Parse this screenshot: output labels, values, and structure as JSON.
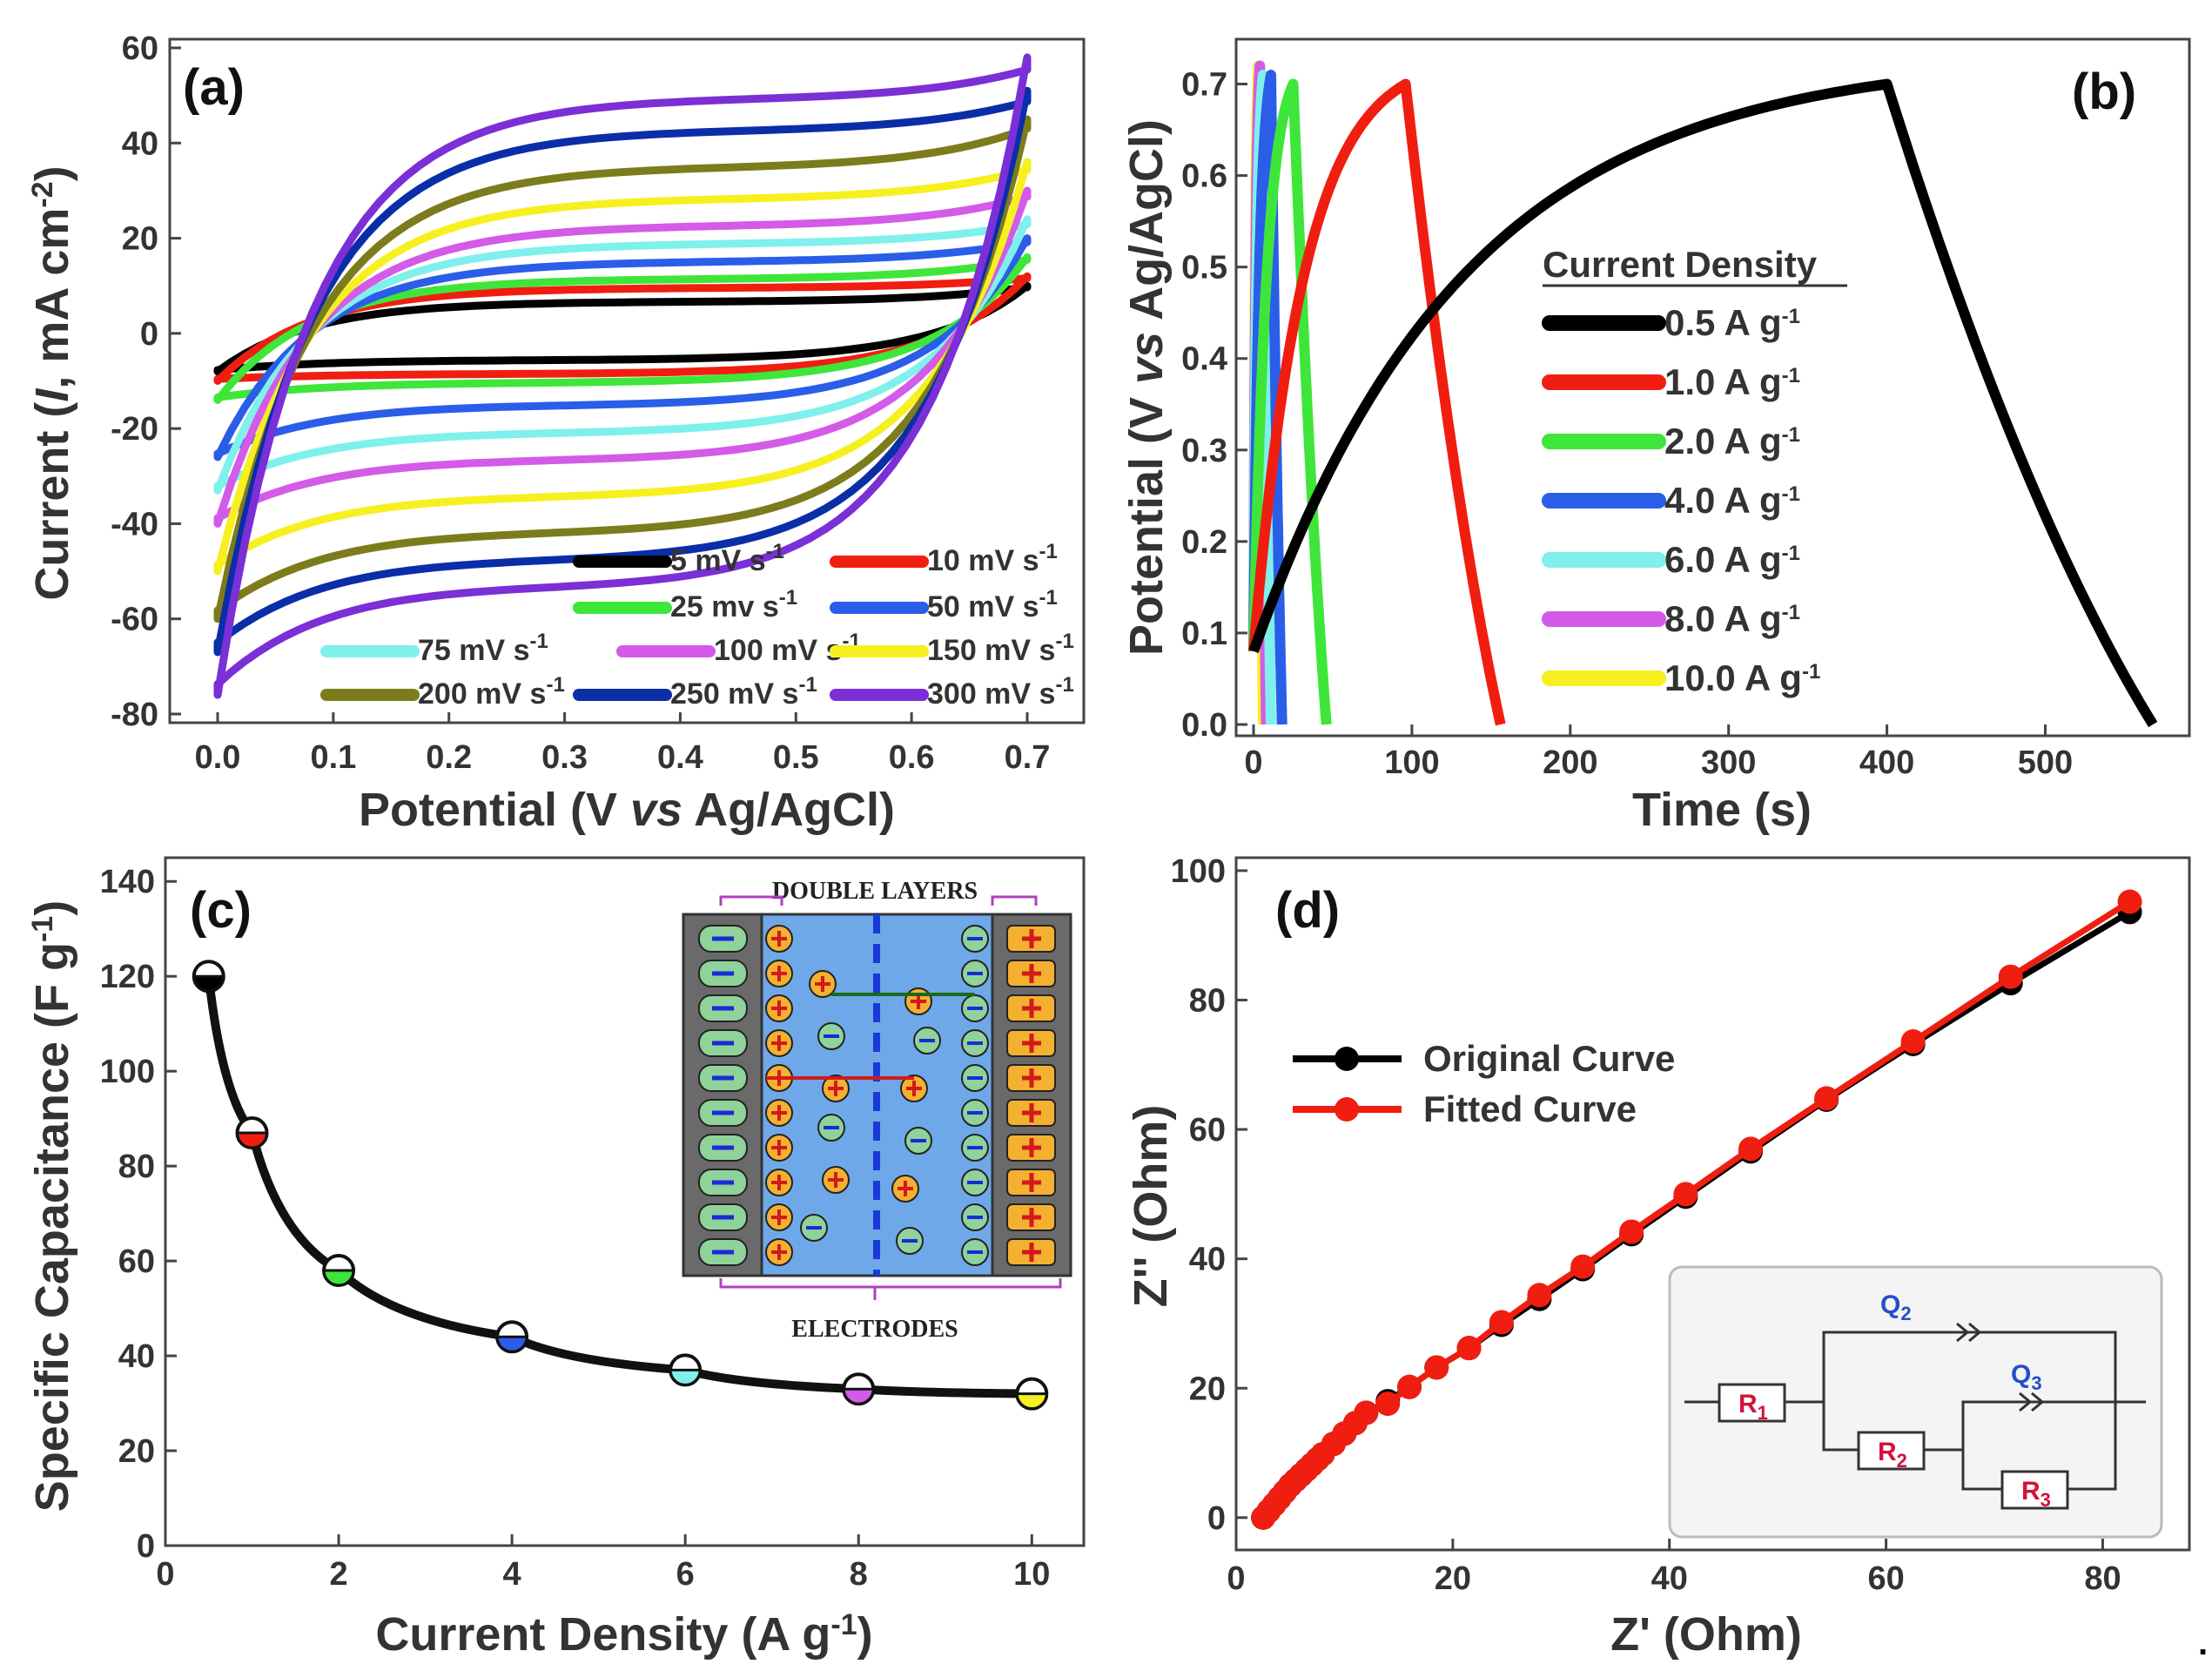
{
  "chart_data": [
    {
      "panel": "(a)",
      "type": "line",
      "xlabel": "Potential (V vs Ag/AgCl)",
      "ylabel": "Current (I, mA cm-2)",
      "xlim": [
        0.0,
        0.7
      ],
      "ylim": [
        -80,
        60
      ],
      "xticks": [
        "0.0",
        "0.1",
        "0.2",
        "0.3",
        "0.4",
        "0.5",
        "0.6",
        "0.7"
      ],
      "yticks": [
        "-80",
        "-60",
        "-40",
        "-20",
        "0",
        "20",
        "40",
        "60"
      ],
      "legend_position": "bottom-right",
      "series": [
        {
          "name": "5 mV s-1",
          "color": "#000000",
          "upper": 7,
          "lower": -6,
          "end": 10,
          "start": -8
        },
        {
          "name": "10 mV s-1",
          "color": "#f01e10",
          "upper": 10,
          "lower": -9,
          "end": 12,
          "start": -10
        },
        {
          "name": "25 mv s-1",
          "color": "#3ee63a",
          "upper": 12,
          "lower": -11,
          "end": 16,
          "start": -14
        },
        {
          "name": "50 mV s-1",
          "color": "#2a5ee8",
          "upper": 16,
          "lower": -16,
          "end": 20,
          "start": -26
        },
        {
          "name": "75 mV s-1",
          "color": "#7ff0ec",
          "upper": 20,
          "lower": -22,
          "end": 24,
          "start": -33
        },
        {
          "name": "100 mV s-1",
          "color": "#d45ae8",
          "upper": 24,
          "lower": -28,
          "end": 30,
          "start": -40
        },
        {
          "name": "150 mV s-1",
          "color": "#f6f020",
          "upper": 30,
          "lower": -36,
          "end": 36,
          "start": -50
        },
        {
          "name": "200 mV s-1",
          "color": "#7c7c1c",
          "upper": 37,
          "lower": -44,
          "end": 45,
          "start": -60
        },
        {
          "name": "250 mV s-1",
          "color": "#0a2ea8",
          "upper": 45,
          "lower": -50,
          "end": 51,
          "start": -67
        },
        {
          "name": "300 mV s-1",
          "color": "#7b2fd6",
          "upper": 52,
          "lower": -56,
          "end": 58,
          "start": -76
        }
      ],
      "legend_labels": [
        "5 mV s",
        "10 mV s",
        "25 mv s",
        "50 mV s",
        "75 mV s",
        "100 mV s",
        "150 mV s",
        "200 mV s",
        "250 mV s",
        "300 mV s"
      ],
      "legend_sup": "-1"
    },
    {
      "panel": "(b)",
      "type": "line",
      "xlabel": "Time (s)",
      "ylabel": "Potential (V vs Ag/AgCl)",
      "xlim": [
        0,
        580
      ],
      "ylim": [
        0.0,
        0.73
      ],
      "xticks": [
        "0",
        "100",
        "200",
        "300",
        "400",
        "500"
      ],
      "yticks": [
        "0.0",
        "0.1",
        "0.2",
        "0.3",
        "0.4",
        "0.5",
        "0.6",
        "0.7"
      ],
      "legend_title": "Current Density",
      "legend_position": "center-right",
      "series": [
        {
          "name": "0.5 A g-1",
          "color": "#000000",
          "charge_end": 400,
          "discharge_end": 568,
          "peak": 0.7
        },
        {
          "name": "1.0 A g-1",
          "color": "#f01e10",
          "charge_end": 96,
          "discharge_end": 156,
          "peak": 0.7
        },
        {
          "name": "2.0 A g-1",
          "color": "#3ee63a",
          "charge_end": 25,
          "discharge_end": 46,
          "peak": 0.7
        },
        {
          "name": "4.0 A g-1",
          "color": "#2a5ee8",
          "charge_end": 11,
          "discharge_end": 18,
          "peak": 0.71
        },
        {
          "name": "6.0 A g-1",
          "color": "#7ff0ec",
          "charge_end": 6,
          "discharge_end": 11,
          "peak": 0.71
        },
        {
          "name": "8.0 A g-1",
          "color": "#d45ae8",
          "charge_end": 4,
          "discharge_end": 8,
          "peak": 0.72
        },
        {
          "name": "10.0 A g-1",
          "color": "#f6f020",
          "charge_end": 3,
          "discharge_end": 6,
          "peak": 0.72
        }
      ],
      "legend_labels": [
        "0.5 A g",
        "1.0 A g",
        "2.0 A g",
        "4.0 A g",
        "6.0 A g",
        "8.0 A g",
        "10.0 A g"
      ],
      "legend_sup": "-1"
    },
    {
      "panel": "(c)",
      "type": "line",
      "xlabel": "Current Density (A g-1)",
      "ylabel": "Specific Capacitance (F g-1)",
      "xlim": [
        0,
        10.6
      ],
      "ylim": [
        0,
        145
      ],
      "xticks": [
        "0",
        "2",
        "4",
        "6",
        "8",
        "10"
      ],
      "yticks": [
        "0",
        "20",
        "40",
        "60",
        "80",
        "100",
        "120",
        "140"
      ],
      "x": [
        0.5,
        1.0,
        2.0,
        4.0,
        6.0,
        8.0,
        10.0
      ],
      "y": [
        120,
        87,
        58,
        44,
        37,
        33,
        32
      ],
      "marker_colors": [
        "#000000",
        "#f01e10",
        "#3ee63a",
        "#2a5ee8",
        "#7ff0ec",
        "#d45ae8",
        "#f6f020"
      ],
      "inset": {
        "top_label": "DOUBLE LAYERS",
        "bottom_label": "ELECTRODES"
      }
    },
    {
      "panel": "(d)",
      "type": "line",
      "xlabel": "Z' (Ohm)",
      "ylabel": "Z'' (Ohm)",
      "xlim": [
        0,
        88
      ],
      "ylim": [
        -5,
        102
      ],
      "xticks": [
        "0",
        "20",
        "40",
        "60",
        "80"
      ],
      "yticks": [
        "0",
        "20",
        "40",
        "60",
        "80",
        "100"
      ],
      "legend_position": "top-left",
      "series": [
        {
          "name": "Original Curve",
          "color": "#000000",
          "x": [
            2.5,
            3,
            3.5,
            4,
            4.5,
            5,
            5.5,
            6,
            6.5,
            7,
            7.5,
            8,
            9,
            10,
            11,
            12,
            14,
            16,
            18.5,
            21.5,
            24.5,
            28,
            32,
            36.5,
            41.5,
            47.5,
            54.5,
            62.5,
            71.5,
            82.5
          ],
          "y": [
            0,
            1,
            2,
            3,
            4,
            5,
            5.8,
            6.6,
            7.4,
            8.2,
            9,
            9.8,
            11.4,
            13,
            14.6,
            16.2,
            18,
            20.2,
            23.2,
            26.2,
            29.8,
            33.8,
            38.4,
            43.8,
            49.6,
            56.6,
            64.6,
            73.2,
            82.6,
            93.6
          ]
        },
        {
          "name": "Fitted Curve",
          "color": "#f01e10",
          "x": [
            2.5,
            3,
            3.5,
            4,
            4.5,
            5,
            5.5,
            6,
            6.5,
            7,
            7.5,
            8,
            9,
            10,
            11,
            12,
            14,
            16,
            18.5,
            21.5,
            24.5,
            28,
            32,
            36.5,
            41.5,
            47.5,
            54.5,
            62.5,
            71.5,
            82.5
          ],
          "y": [
            0,
            1,
            2,
            3,
            4,
            5,
            5.8,
            6.6,
            7.4,
            8.2,
            9,
            9.8,
            11.4,
            13,
            14.6,
            16.2,
            17.6,
            20.2,
            23.2,
            26.2,
            30.2,
            34.4,
            38.8,
            44.2,
            50.0,
            57.0,
            64.8,
            73.6,
            83.6,
            95.2
          ]
        }
      ],
      "circuit": {
        "r1": "R",
        "r1_sub": "1",
        "r2": "R",
        "r2_sub": "2",
        "r3": "R",
        "r3_sub": "3",
        "q2": "Q",
        "q2_sub": "2",
        "q3": "Q",
        "q3_sub": "3"
      }
    }
  ]
}
